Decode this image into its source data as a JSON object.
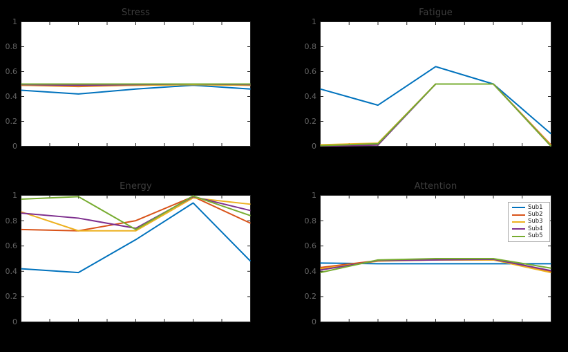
{
  "figure": {
    "background": "#000000",
    "axes_background": "#ffffff",
    "axis_color": "#262626",
    "title_color": "#3e3e3e",
    "tick_label_color": "#666666",
    "legend_border_color": "#ababab",
    "legend_text_color": "#262626"
  },
  "chart_data": [
    {
      "type": "line",
      "title": "Stress",
      "x": [
        1,
        2,
        3,
        4,
        5
      ],
      "xlim": [
        1,
        5
      ],
      "ylim": [
        0,
        1
      ],
      "n_xticks": 9,
      "xtick_labels_visible": false,
      "yticks": [
        0,
        0.2,
        0.4,
        0.6,
        0.8,
        1
      ],
      "ytick_labels": [
        "0",
        "0.2",
        "0.4",
        "0.6",
        "0.8",
        "1"
      ],
      "grid": false,
      "series": [
        {
          "name": "Sub1",
          "color": "#0072BD",
          "values": [
            0.45,
            0.42,
            0.46,
            0.49,
            0.46
          ]
        },
        {
          "name": "Sub2",
          "color": "#D95319",
          "values": [
            0.49,
            0.48,
            0.49,
            0.495,
            0.49
          ]
        },
        {
          "name": "Sub3",
          "color": "#EDB120",
          "values": [
            0.49,
            0.485,
            0.49,
            0.495,
            0.49
          ]
        },
        {
          "name": "Sub4",
          "color": "#7E2F8E",
          "values": [
            0.495,
            0.49,
            0.495,
            0.5,
            0.495
          ]
        },
        {
          "name": "Sub5",
          "color": "#77AC30",
          "values": [
            0.5,
            0.5,
            0.5,
            0.5,
            0.5
          ]
        }
      ],
      "legend": {
        "visible": false
      }
    },
    {
      "type": "line",
      "title": "Fatigue",
      "x": [
        1,
        2,
        3,
        4,
        5
      ],
      "xlim": [
        1,
        5
      ],
      "ylim": [
        0,
        1
      ],
      "n_xticks": 9,
      "xtick_labels_visible": false,
      "yticks": [
        0,
        0.2,
        0.4,
        0.6,
        0.8,
        1
      ],
      "ytick_labels": [
        "0",
        "0.2",
        "0.4",
        "0.6",
        "0.8",
        "1"
      ],
      "grid": false,
      "series": [
        {
          "name": "Sub1",
          "color": "#0072BD",
          "values": [
            0.46,
            0.33,
            0.64,
            0.5,
            0.1
          ]
        },
        {
          "name": "Sub2",
          "color": "#D95319",
          "values": [
            0.01,
            0.02,
            0.5,
            0.5,
            0.01
          ]
        },
        {
          "name": "Sub3",
          "color": "#EDB120",
          "values": [
            0.012,
            0.025,
            0.5,
            0.5,
            0.005
          ]
        },
        {
          "name": "Sub4",
          "color": "#7E2F8E",
          "values": [
            0.0,
            0.01,
            0.5,
            0.5,
            0.0
          ]
        },
        {
          "name": "Sub5",
          "color": "#77AC30",
          "values": [
            0.005,
            0.02,
            0.5,
            0.5,
            0.0
          ]
        }
      ],
      "legend": {
        "visible": false
      }
    },
    {
      "type": "line",
      "title": "Energy",
      "x": [
        1,
        2,
        3,
        4,
        5
      ],
      "xlim": [
        1,
        5
      ],
      "ylim": [
        0,
        1
      ],
      "n_xticks": 9,
      "xtick_labels_visible": false,
      "yticks": [
        0,
        0.2,
        0.4,
        0.6,
        0.8,
        1
      ],
      "ytick_labels": [
        "0",
        "0.2",
        "0.4",
        "0.6",
        "0.8",
        "1"
      ],
      "grid": false,
      "series": [
        {
          "name": "Sub1",
          "color": "#0072BD",
          "values": [
            0.42,
            0.39,
            0.65,
            0.94,
            0.48
          ]
        },
        {
          "name": "Sub2",
          "color": "#D95319",
          "values": [
            0.73,
            0.72,
            0.8,
            0.99,
            0.78
          ]
        },
        {
          "name": "Sub3",
          "color": "#EDB120",
          "values": [
            0.87,
            0.72,
            0.72,
            0.98,
            0.93
          ]
        },
        {
          "name": "Sub4",
          "color": "#7E2F8E",
          "values": [
            0.86,
            0.82,
            0.74,
            0.99,
            0.88
          ]
        },
        {
          "name": "Sub5",
          "color": "#77AC30",
          "values": [
            0.97,
            0.99,
            0.73,
            0.995,
            0.84
          ]
        }
      ],
      "legend": {
        "visible": false
      }
    },
    {
      "type": "line",
      "title": "Attention",
      "x": [
        1,
        2,
        3,
        4,
        5
      ],
      "xlim": [
        1,
        5
      ],
      "ylim": [
        0,
        1
      ],
      "n_xticks": 9,
      "xtick_labels_visible": false,
      "yticks": [
        0,
        0.2,
        0.4,
        0.6,
        0.8,
        1
      ],
      "ytick_labels": [
        "0",
        "0.2",
        "0.4",
        "0.6",
        "0.8",
        "1"
      ],
      "grid": false,
      "series": [
        {
          "name": "Sub1",
          "color": "#0072BD",
          "values": [
            0.465,
            0.46,
            0.46,
            0.46,
            0.46
          ]
        },
        {
          "name": "Sub2",
          "color": "#D95319",
          "values": [
            0.43,
            0.485,
            0.49,
            0.49,
            0.4
          ]
        },
        {
          "name": "Sub3",
          "color": "#EDB120",
          "values": [
            0.42,
            0.48,
            0.49,
            0.49,
            0.39
          ]
        },
        {
          "name": "Sub4",
          "color": "#7E2F8E",
          "values": [
            0.41,
            0.485,
            0.49,
            0.495,
            0.405
          ]
        },
        {
          "name": "Sub5",
          "color": "#77AC30",
          "values": [
            0.39,
            0.49,
            0.5,
            0.5,
            0.425
          ]
        }
      ],
      "legend": {
        "visible": true,
        "position": "northeast",
        "entries": [
          "Sub1",
          "Sub2",
          "Sub3",
          "Sub4",
          "Sub5"
        ]
      }
    }
  ]
}
